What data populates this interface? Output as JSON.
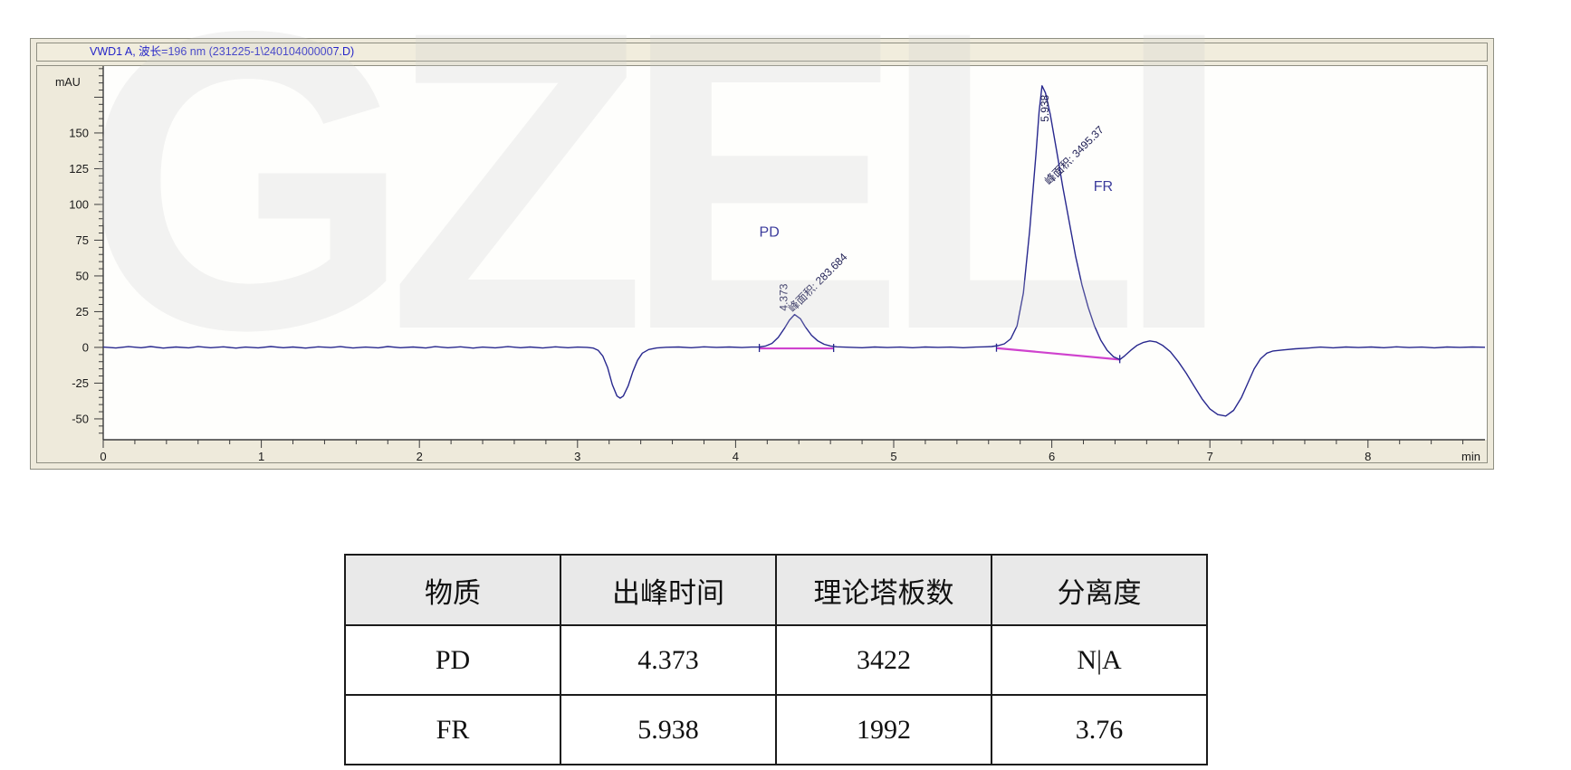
{
  "watermark": "GZELI",
  "chromatogram": {
    "title": "VWD1 A, 波长=196 nm (231225-1\\240104000007.D)",
    "y_unit": "mAU",
    "x_unit": "min",
    "chart_data": {
      "type": "line",
      "title": "VWD1 A, 波长=196 nm (231225-1\\240104000007.D)",
      "xlabel": "min",
      "ylabel": "mAU",
      "xlim": [
        0,
        8.74
      ],
      "ylim": [
        -64.6,
        196.8
      ],
      "x_major_ticks": [
        0,
        1,
        2,
        3,
        4,
        5,
        6,
        7,
        8
      ],
      "y_major_ticks": [
        -50,
        -25,
        0,
        25,
        50,
        75,
        100,
        125,
        150
      ],
      "x_minor_step": 0.2,
      "y_minor_step": 5,
      "grid": false,
      "legend": false,
      "trace_color": "#28288e",
      "baseline_color": "#cf42ce",
      "annotation_color": "#1c1c52",
      "peak_name_color": "#3c3c9c",
      "series": [
        {
          "name": "VWD1 A",
          "points": [
            [
              0,
              0.2
            ],
            [
              0.08,
              -0.4
            ],
            [
              0.16,
              0.5
            ],
            [
              0.24,
              -0.2
            ],
            [
              0.3,
              0.6
            ],
            [
              0.38,
              -0.5
            ],
            [
              0.46,
              0.3
            ],
            [
              0.54,
              -0.3
            ],
            [
              0.6,
              0.5
            ],
            [
              0.68,
              -0.2
            ],
            [
              0.76,
              0.4
            ],
            [
              0.84,
              -0.5
            ],
            [
              0.9,
              0.2
            ],
            [
              0.98,
              -0.3
            ],
            [
              1.06,
              0.6
            ],
            [
              1.14,
              -0.2
            ],
            [
              1.2,
              0.3
            ],
            [
              1.28,
              -0.5
            ],
            [
              1.36,
              0.4
            ],
            [
              1.44,
              -0.1
            ],
            [
              1.5,
              0.5
            ],
            [
              1.58,
              -0.4
            ],
            [
              1.66,
              0.2
            ],
            [
              1.74,
              -0.3
            ],
            [
              1.8,
              0.6
            ],
            [
              1.88,
              -0.2
            ],
            [
              1.96,
              0.3
            ],
            [
              2.04,
              -0.4
            ],
            [
              2.1,
              0.5
            ],
            [
              2.18,
              -0.2
            ],
            [
              2.26,
              0.4
            ],
            [
              2.34,
              -0.5
            ],
            [
              2.4,
              0.2
            ],
            [
              2.48,
              -0.3
            ],
            [
              2.56,
              0.5
            ],
            [
              2.64,
              -0.2
            ],
            [
              2.7,
              0.3
            ],
            [
              2.78,
              -0.4
            ],
            [
              2.86,
              0.4
            ],
            [
              2.94,
              -0.2
            ],
            [
              3.0,
              0.2
            ],
            [
              3.06,
              0.0
            ],
            [
              3.1,
              -0.5
            ],
            [
              3.13,
              -2
            ],
            [
              3.16,
              -6
            ],
            [
              3.19,
              -14
            ],
            [
              3.22,
              -26
            ],
            [
              3.25,
              -34
            ],
            [
              3.27,
              -35.5
            ],
            [
              3.29,
              -34
            ],
            [
              3.32,
              -27
            ],
            [
              3.35,
              -17
            ],
            [
              3.38,
              -9
            ],
            [
              3.41,
              -4
            ],
            [
              3.45,
              -1.5
            ],
            [
              3.5,
              -0.4
            ],
            [
              3.56,
              0.1
            ],
            [
              3.64,
              0.3
            ],
            [
              3.72,
              -0.2
            ],
            [
              3.8,
              0.4
            ],
            [
              3.88,
              0
            ],
            [
              3.96,
              0.3
            ],
            [
              4.04,
              -0.1
            ],
            [
              4.1,
              0.2
            ],
            [
              4.15,
              0.3
            ],
            [
              4.19,
              1
            ],
            [
              4.23,
              2.8
            ],
            [
              4.27,
              7
            ],
            [
              4.31,
              13.5
            ],
            [
              4.34,
              19
            ],
            [
              4.373,
              23
            ],
            [
              4.41,
              20
            ],
            [
              4.44,
              14.5
            ],
            [
              4.48,
              8.5
            ],
            [
              4.52,
              4.5
            ],
            [
              4.56,
              2.2
            ],
            [
              4.6,
              1
            ],
            [
              4.64,
              0.4
            ],
            [
              4.72,
              0.1
            ],
            [
              4.8,
              -0.2
            ],
            [
              4.88,
              0.3
            ],
            [
              4.96,
              -0.1
            ],
            [
              5.04,
              0.2
            ],
            [
              5.12,
              -0.2
            ],
            [
              5.2,
              0.3
            ],
            [
              5.28,
              0
            ],
            [
              5.36,
              0.2
            ],
            [
              5.44,
              -0.2
            ],
            [
              5.52,
              0.2
            ],
            [
              5.58,
              0.4
            ],
            [
              5.62,
              0.6
            ],
            [
              5.66,
              1.2
            ],
            [
              5.7,
              2.5
            ],
            [
              5.74,
              6
            ],
            [
              5.78,
              15
            ],
            [
              5.82,
              38
            ],
            [
              5.86,
              82
            ],
            [
              5.9,
              135
            ],
            [
              5.92,
              165
            ],
            [
              5.938,
              183
            ],
            [
              5.96,
              178
            ],
            [
              5.99,
              163
            ],
            [
              6.03,
              138
            ],
            [
              6.07,
              112
            ],
            [
              6.11,
              88
            ],
            [
              6.15,
              64
            ],
            [
              6.19,
              44
            ],
            [
              6.23,
              28
            ],
            [
              6.27,
              15
            ],
            [
              6.31,
              5
            ],
            [
              6.35,
              -2
            ],
            [
              6.39,
              -6.5
            ],
            [
              6.43,
              -8.5
            ],
            [
              6.46,
              -6
            ],
            [
              6.5,
              -2
            ],
            [
              6.54,
              1.5
            ],
            [
              6.58,
              3.5
            ],
            [
              6.62,
              4.5
            ],
            [
              6.66,
              3.8
            ],
            [
              6.7,
              1.5
            ],
            [
              6.75,
              -3
            ],
            [
              6.8,
              -10
            ],
            [
              6.85,
              -18
            ],
            [
              6.9,
              -27
            ],
            [
              6.95,
              -36
            ],
            [
              7.0,
              -43
            ],
            [
              7.05,
              -47
            ],
            [
              7.1,
              -48
            ],
            [
              7.15,
              -44
            ],
            [
              7.2,
              -35
            ],
            [
              7.24,
              -25
            ],
            [
              7.28,
              -15
            ],
            [
              7.32,
              -8
            ],
            [
              7.36,
              -4
            ],
            [
              7.4,
              -2.5
            ],
            [
              7.46,
              -1.8
            ],
            [
              7.54,
              -1
            ],
            [
              7.62,
              -0.5
            ],
            [
              7.7,
              0.2
            ],
            [
              7.78,
              -0.3
            ],
            [
              7.86,
              0.3
            ],
            [
              7.94,
              -0.1
            ],
            [
              8.02,
              0.3
            ],
            [
              8.1,
              -0.2
            ],
            [
              8.18,
              0.4
            ],
            [
              8.26,
              -0.1
            ],
            [
              8.34,
              0.2
            ],
            [
              8.42,
              -0.3
            ],
            [
              8.5,
              0.3
            ],
            [
              8.58,
              0
            ],
            [
              8.66,
              0.3
            ],
            [
              8.74,
              0.1
            ]
          ]
        }
      ],
      "integration_baselines": [
        {
          "x1": 4.15,
          "y1": -0.7,
          "x2": 4.62,
          "y2": -0.7
        },
        {
          "x1": 5.65,
          "y1": -0.5,
          "x2": 6.43,
          "y2": -8.5
        }
      ],
      "peaks": [
        {
          "name": "PD",
          "rt": "4.373",
          "apex_mau": 23,
          "area": "283.684",
          "area_label": "峰面积: 283.684"
        },
        {
          "name": "FR",
          "rt": "5.938",
          "apex_mau": 183,
          "area": "3495.37",
          "area_label": "峰面积: 3495.37"
        }
      ]
    }
  },
  "table": {
    "headers": [
      "物质",
      "出峰时间",
      "理论塔板数",
      "分离度"
    ],
    "rows": [
      [
        "PD",
        "4.373",
        "3422",
        "N|A"
      ],
      [
        "FR",
        "5.938",
        "1992",
        "3.76"
      ]
    ]
  }
}
